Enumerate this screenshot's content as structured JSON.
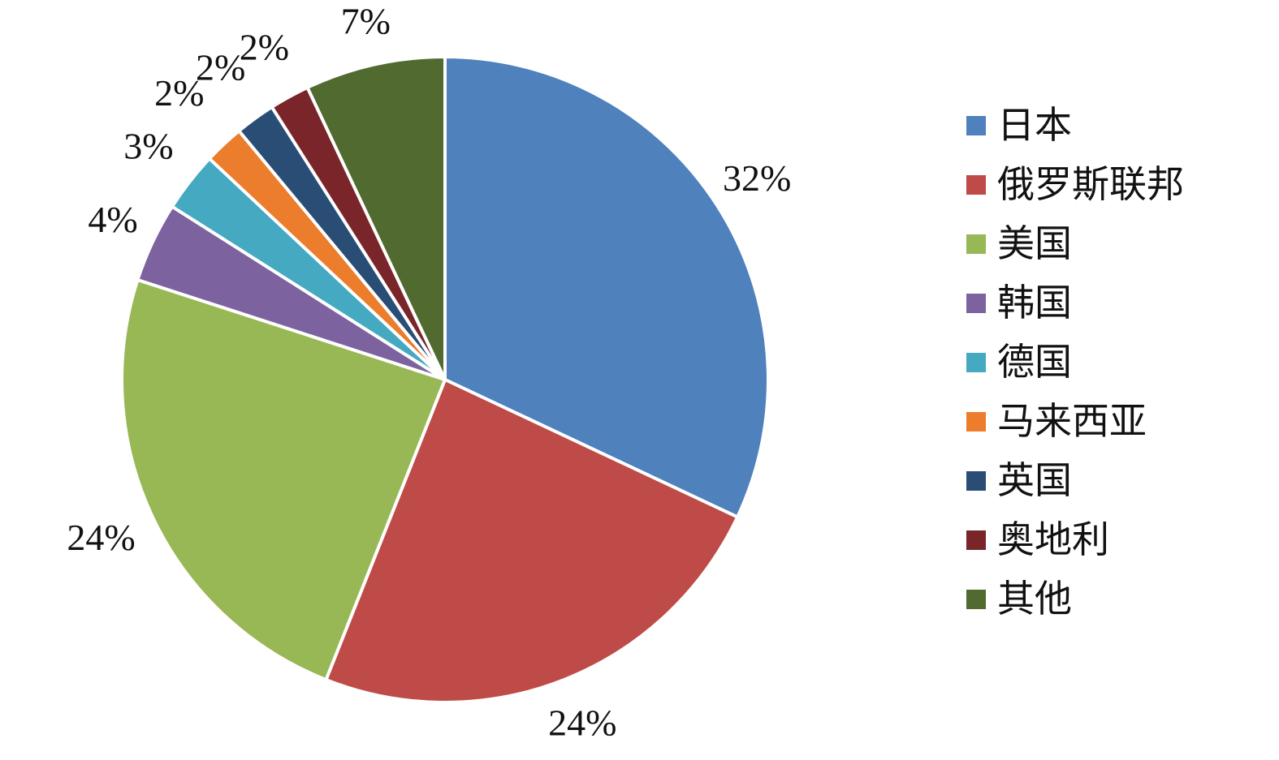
{
  "chart_data": {
    "type": "pie",
    "title": "",
    "categories": [
      "日本",
      "俄罗斯联邦",
      "美国",
      "韩国",
      "德国",
      "马来西亚",
      "英国",
      "奥地利",
      "其他"
    ],
    "values": [
      32,
      24,
      24,
      4,
      3,
      2,
      2,
      2,
      7
    ],
    "data_labels": [
      "32%",
      "24%",
      "24%",
      "4%",
      "3%",
      "2%",
      "2%",
      "2%",
      "7%"
    ],
    "colors": [
      "#4F81BD",
      "#BE4B48",
      "#98B855",
      "#7D62A0",
      "#45A9C1",
      "#EC7D2D",
      "#2A4D75",
      "#7A2529",
      "#516A30"
    ],
    "start_angle_deg": 0,
    "direction": "clockwise",
    "legend_position": "right",
    "background": "#FFFFFF",
    "label_color": "#111111",
    "slice_separator_color": "#FFFFFF"
  }
}
